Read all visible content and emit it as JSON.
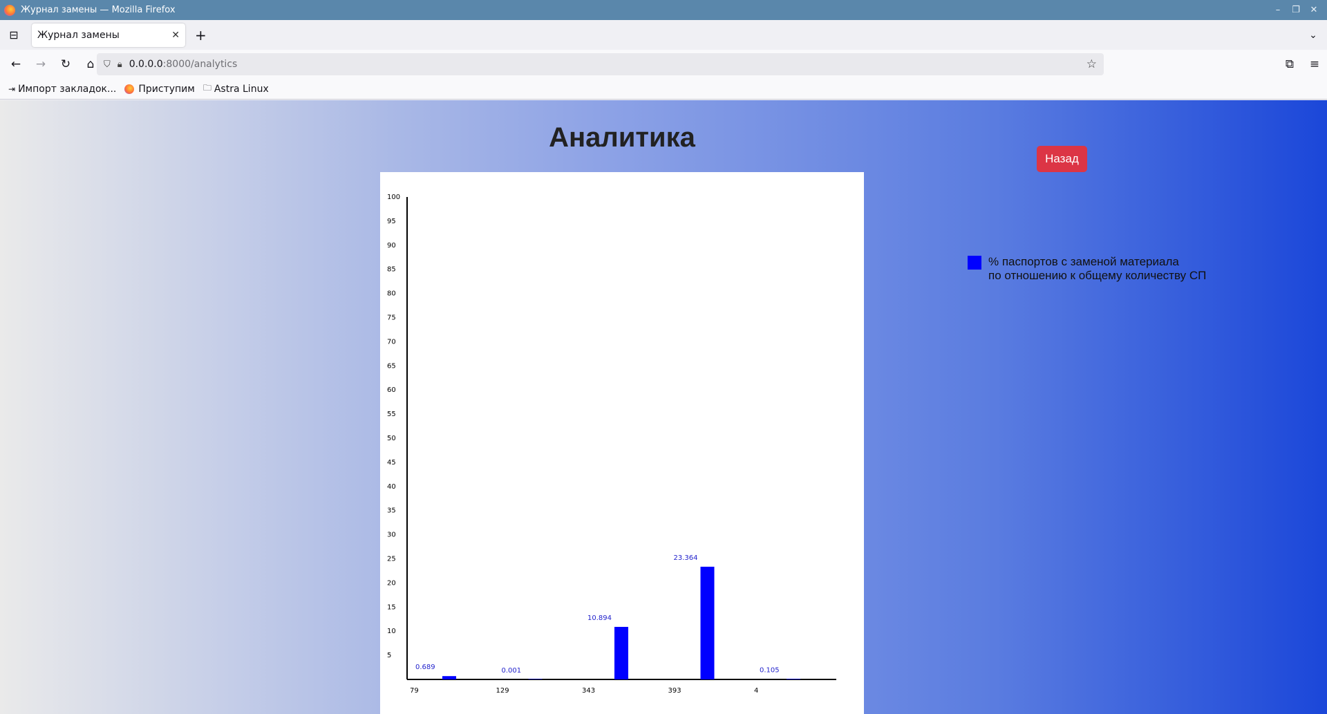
{
  "window": {
    "title": "Журнал замены — Mozilla Firefox",
    "minimize_glyph": "–",
    "restore_glyph": "❐",
    "close_glyph": "✕"
  },
  "tabs": [
    {
      "label": "Журнал замены",
      "close_glyph": "✕",
      "active": true
    }
  ],
  "tabstrip": {
    "new_tab_glyph": "+",
    "list_all_glyph": "⊟",
    "overflow_glyph": "⌄"
  },
  "navbar": {
    "back_glyph": "←",
    "forward_glyph": "→",
    "reload_glyph": "↻",
    "home_glyph": "⌂",
    "url_host": "0.0.0.0",
    "url_path": ":8000/analytics",
    "shield_glyph": "⛉",
    "lock_glyph": "🔒︎",
    "star_glyph": "☆",
    "extensions_glyph": "⧉",
    "menu_glyph": "≡"
  },
  "bookmarks": [
    {
      "label": "Импорт закладок...",
      "icon": "import-icon",
      "glyph": "⇥"
    },
    {
      "label": "Приступим",
      "icon": "firefox-icon"
    },
    {
      "label": "Astra Linux",
      "icon": "folder-icon",
      "glyph": "🗀"
    }
  ],
  "page": {
    "title": "Аналитика",
    "back_button": "Назад",
    "legend": {
      "line1": "% паспортов с заменой материала",
      "line2": "по отношению к общему количеству СП",
      "color": "#0000ff"
    }
  },
  "chart_data": {
    "type": "bar",
    "categories": [
      "79",
      "129",
      "343",
      "393",
      "4"
    ],
    "values": [
      0.689,
      0.001,
      10.894,
      23.364,
      0.105
    ],
    "value_labels": [
      "0.689",
      "0.001",
      "10.894",
      "23.364",
      "0.105"
    ],
    "yticks": [
      5,
      10,
      15,
      20,
      25,
      30,
      35,
      40,
      45,
      50,
      55,
      60,
      65,
      70,
      75,
      80,
      85,
      90,
      95,
      100
    ],
    "ylim": [
      0,
      100
    ],
    "bar_color": "#0000ff",
    "label_color": "#2222cc",
    "title": "",
    "xlabel": "",
    "ylabel": "",
    "grid": false,
    "legend": "right"
  }
}
